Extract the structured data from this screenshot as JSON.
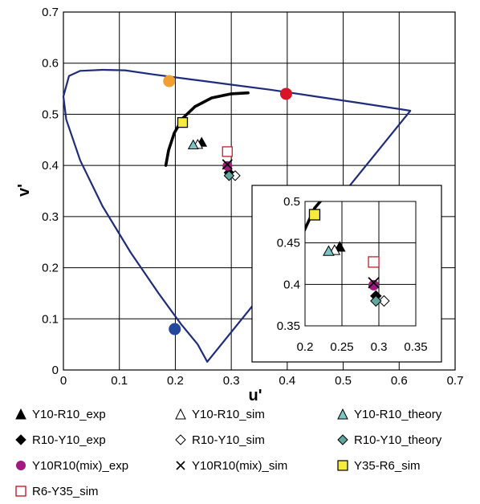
{
  "chart_data": {
    "type": "scatter",
    "xlabel": "u'",
    "ylabel": "v'",
    "xlim": [
      0,
      0.7
    ],
    "ylim": [
      0,
      0.7
    ],
    "x_ticks": [
      "0",
      "0.1",
      "0.2",
      "0.3",
      "0.4",
      "0.5",
      "0.6",
      "0.7"
    ],
    "y_ticks": [
      "0",
      "0.1",
      "0.2",
      "0.3",
      "0.4",
      "0.5",
      "0.6",
      "0.7"
    ],
    "grid": true,
    "spectral_locus": [
      [
        0.257,
        0.016
      ],
      [
        0.24,
        0.05
      ],
      [
        0.21,
        0.09
      ],
      [
        0.17,
        0.15
      ],
      [
        0.12,
        0.23
      ],
      [
        0.07,
        0.32
      ],
      [
        0.03,
        0.41
      ],
      [
        0.005,
        0.49
      ],
      [
        0.0,
        0.535
      ],
      [
        0.01,
        0.575
      ],
      [
        0.03,
        0.585
      ],
      [
        0.07,
        0.587
      ],
      [
        0.11,
        0.586
      ],
      [
        0.16,
        0.578
      ],
      [
        0.23,
        0.568
      ],
      [
        0.3,
        0.558
      ],
      [
        0.37,
        0.548
      ],
      [
        0.45,
        0.535
      ],
      [
        0.53,
        0.522
      ],
      [
        0.62,
        0.507
      ]
    ],
    "locus_color": "#1f2c7c",
    "blackbody_curve": [
      [
        0.183,
        0.4
      ],
      [
        0.188,
        0.43
      ],
      [
        0.198,
        0.463
      ],
      [
        0.213,
        0.492
      ],
      [
        0.235,
        0.515
      ],
      [
        0.265,
        0.532
      ],
      [
        0.3,
        0.54
      ],
      [
        0.33,
        0.542
      ]
    ],
    "primaries": [
      {
        "u": 0.189,
        "v": 0.565,
        "color": "#f0a030"
      },
      {
        "u": 0.398,
        "v": 0.54,
        "color": "#d61628"
      },
      {
        "u": 0.199,
        "v": 0.08,
        "color": "#23479c"
      }
    ],
    "series": [
      {
        "name": "Y10-R10_exp",
        "marker": "triangle",
        "fill": "#000000",
        "points": [
          [
            0.247,
            0.445
          ]
        ]
      },
      {
        "name": "Y10-R10_sim",
        "marker": "triangle",
        "fill": "#ffffff",
        "points": [
          [
            0.24,
            0.441
          ]
        ]
      },
      {
        "name": "Y10-R10_theory",
        "marker": "triangle",
        "fill": "#7ec4c4",
        "points": [
          [
            0.232,
            0.44
          ]
        ]
      },
      {
        "name": "R10-Y10_exp",
        "marker": "diamond",
        "fill": "#000000",
        "points": [
          [
            0.296,
            0.386
          ]
        ]
      },
      {
        "name": "R10-Y10_sim",
        "marker": "diamond",
        "fill": "#ffffff",
        "points": [
          [
            0.307,
            0.38
          ]
        ]
      },
      {
        "name": "R10-Y10_theory",
        "marker": "diamond",
        "fill": "#5fa8a0",
        "points": [
          [
            0.296,
            0.38
          ]
        ]
      },
      {
        "name": "Y10R10(mix)_exp",
        "marker": "circle",
        "fill": "#a3197f",
        "points": [
          [
            0.293,
            0.399
          ]
        ]
      },
      {
        "name": "Y10R10(mix)_sim",
        "marker": "x",
        "fill": "#000000",
        "points": [
          [
            0.293,
            0.402
          ]
        ]
      },
      {
        "name": "Y35-R6_sim",
        "marker": "square",
        "fill": "#f6ec3c",
        "points": [
          [
            0.213,
            0.484
          ]
        ]
      },
      {
        "name": "R6-Y35_sim",
        "marker": "square",
        "fill": "#ffffff",
        "stroke": "#c0202a",
        "points": [
          [
            0.293,
            0.427
          ]
        ]
      }
    ],
    "inset": {
      "xlim": [
        0.2,
        0.35
      ],
      "ylim": [
        0.35,
        0.5
      ],
      "x_ticks": [
        "0.2",
        "0.25",
        "0.3",
        "0.35"
      ],
      "y_ticks": [
        "0.35",
        "0.4",
        "0.45",
        "0.5"
      ]
    }
  }
}
